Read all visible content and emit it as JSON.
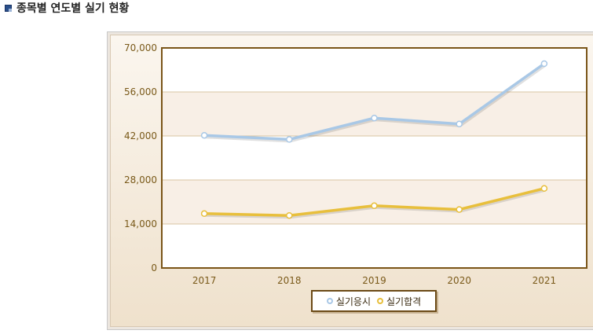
{
  "header": {
    "title": "종목별 연도별 실기 현황"
  },
  "chart_data": {
    "type": "line",
    "categories": [
      "2017",
      "2018",
      "2019",
      "2020",
      "2021"
    ],
    "series": [
      {
        "name": "실기응시",
        "values": [
          42200,
          40900,
          47700,
          45800,
          65000
        ],
        "color": "#a9c8e6"
      },
      {
        "name": "실기합격",
        "values": [
          17300,
          16700,
          19800,
          18600,
          25300
        ],
        "color": "#e8bf3c"
      }
    ],
    "ylim": [
      0,
      70000
    ],
    "yticks": [
      "0",
      "14,000",
      "28,000",
      "42,000",
      "56,000",
      "70,000"
    ],
    "ytick_values": [
      0,
      14000,
      28000,
      42000,
      56000,
      70000
    ],
    "legend_position": "bottom",
    "title": "",
    "xlabel": "",
    "ylabel": ""
  }
}
